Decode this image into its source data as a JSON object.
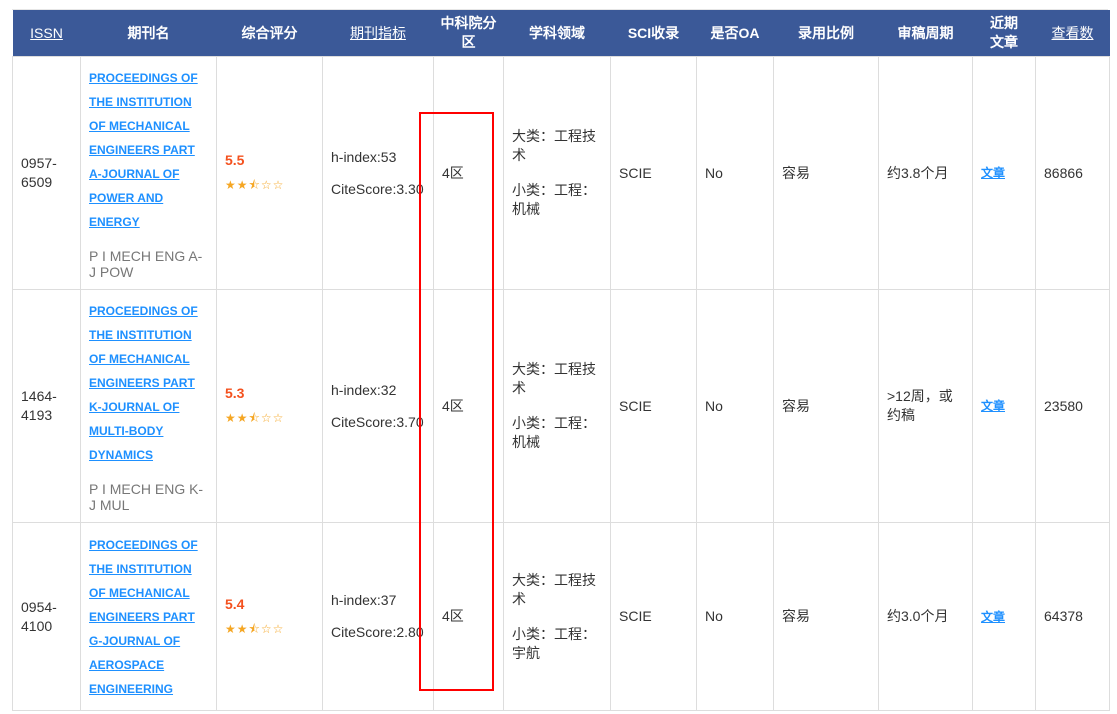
{
  "headers": {
    "issn": "ISSN",
    "name": "期刊名",
    "rating": "综合评分",
    "metrics": "期刊指标",
    "cas": "中科院分区",
    "field": "学科领域",
    "sci": "SCI收录",
    "oa": "是否OA",
    "accept": "录用比例",
    "review": "审稿周期",
    "recent": "近期文章",
    "views": "查看数"
  },
  "colors": {
    "header_bg": "#3b5998",
    "link": "#1e90ff",
    "score": "#f4511e",
    "star": "#f5a623",
    "highlight_box": "#ff0000"
  },
  "rows": [
    {
      "issn": "0957-6509",
      "name_lines": [
        "PROCEEDINGS OF",
        "THE INSTITUTION",
        "OF MECHANICAL",
        "ENGINEERS PART",
        "A-JOURNAL OF",
        "POWER AND",
        "ENERGY"
      ],
      "abbr": "P I MECH ENG A-J POW",
      "score": "5.5",
      "stars": 2.5,
      "stars_text": "★★⯪☆☆",
      "h_index": "h-index:53",
      "citescore": "CiteScore:3.30",
      "cas": "4区",
      "major": "大类：工程技术",
      "minor": "小类：工程：机械",
      "sci": "SCIE",
      "oa": "No",
      "accept": "容易",
      "review": "约3.8个月",
      "recent": "文章",
      "views": "86866"
    },
    {
      "issn": "1464-4193",
      "name_lines": [
        "PROCEEDINGS OF",
        "THE INSTITUTION",
        "OF MECHANICAL",
        "ENGINEERS PART",
        "K-JOURNAL OF",
        "MULTI-BODY",
        "DYNAMICS"
      ],
      "abbr": "P I MECH ENG K-J MUL",
      "score": "5.3",
      "stars": 2.5,
      "stars_text": "★★⯪☆☆",
      "h_index": "h-index:32",
      "citescore": "CiteScore:3.70",
      "cas": "4区",
      "major": "大类：工程技术",
      "minor": "小类：工程：机械",
      "sci": "SCIE",
      "oa": "No",
      "accept": "容易",
      "review": ">12周，或约稿",
      "recent": "文章",
      "views": "23580"
    },
    {
      "issn": "0954-4100",
      "name_lines": [
        "PROCEEDINGS OF",
        "THE INSTITUTION",
        "OF MECHANICAL",
        "ENGINEERS PART",
        "G-JOURNAL OF",
        "AEROSPACE",
        "ENGINEERING"
      ],
      "abbr": "",
      "score": "5.4",
      "stars": 2.5,
      "stars_text": "★★⯪☆☆",
      "h_index": "h-index:37",
      "citescore": "CiteScore:2.80",
      "cas": "4区",
      "major": "大类：工程技术",
      "minor": "小类：工程：宇航",
      "sci": "SCIE",
      "oa": "No",
      "accept": "容易",
      "review": "约3.0个月",
      "recent": "文章",
      "views": "64378"
    }
  ]
}
